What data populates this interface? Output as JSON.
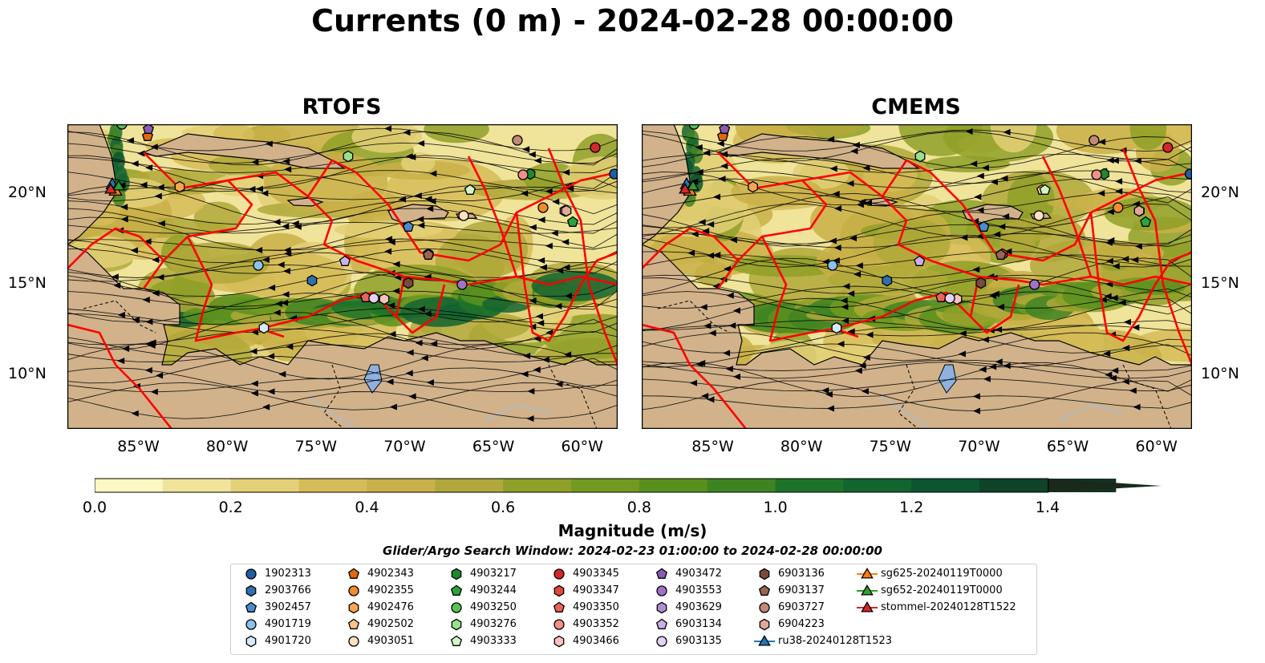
{
  "figure": {
    "suptitle": "Currents (0 m) - 2024-02-28 00:00:00",
    "panels": [
      {
        "title": "RTOFS"
      },
      {
        "title": "CMEMS"
      }
    ],
    "lat_labels": [
      "20°N",
      "15°N",
      "10°N"
    ],
    "lon_labels": [
      "85°W",
      "80°W",
      "75°W",
      "70°W",
      "65°W",
      "60°W"
    ]
  },
  "colorbar": {
    "label": "Magnitude (m/s)",
    "ticks": [
      "0.0",
      "0.2",
      "0.4",
      "0.6",
      "0.8",
      "1.0",
      "1.2",
      "1.4"
    ],
    "colors": [
      "#fdf7c2",
      "#f0e49a",
      "#e3d077",
      "#d6bc58",
      "#c9b048",
      "#b0a83a",
      "#8fa028",
      "#739a20",
      "#5a901e",
      "#3f8422",
      "#1f7328",
      "#146430",
      "#0d5430",
      "#0e4328",
      "#133322",
      "#192a1c"
    ]
  },
  "search_window": "Glider/Argo Search Window: 2024-02-23 01:00:00 to 2024-02-28 00:00:00",
  "legend": [
    {
      "label": "1902313",
      "marker": "circle",
      "color": "#1f5fa8"
    },
    {
      "label": "2903766",
      "marker": "hexagon",
      "color": "#2f6fb0"
    },
    {
      "label": "3902457",
      "marker": "pentagon",
      "color": "#4a8bd0"
    },
    {
      "label": "4901719",
      "marker": "circle",
      "color": "#8dc0ea"
    },
    {
      "label": "4901720",
      "marker": "hexagon",
      "color": "#d6e9f8"
    },
    {
      "label": "4902343",
      "marker": "pentagon",
      "color": "#e0690f"
    },
    {
      "label": "4902355",
      "marker": "circle",
      "color": "#f08c2a"
    },
    {
      "label": "4902476",
      "marker": "hexagon",
      "color": "#f5a650"
    },
    {
      "label": "4902502",
      "marker": "pentagon",
      "color": "#f8c48c"
    },
    {
      "label": "4903051",
      "marker": "circle",
      "color": "#fde0c0"
    },
    {
      "label": "4903217",
      "marker": "hexagon",
      "color": "#1e8a2c"
    },
    {
      "label": "4903244",
      "marker": "pentagon",
      "color": "#2ea33c"
    },
    {
      "label": "4903250",
      "marker": "circle",
      "color": "#5ac455"
    },
    {
      "label": "4903276",
      "marker": "hexagon",
      "color": "#98e08e"
    },
    {
      "label": "4903333",
      "marker": "pentagon",
      "color": "#d3f5c8"
    },
    {
      "label": "4903345",
      "marker": "circle",
      "color": "#d62728"
    },
    {
      "label": "4903347",
      "marker": "hexagon",
      "color": "#e0473d"
    },
    {
      "label": "4903350",
      "marker": "pentagon",
      "color": "#e86458"
    },
    {
      "label": "4903352",
      "marker": "circle",
      "color": "#f29088"
    },
    {
      "label": "4903466",
      "marker": "hexagon",
      "color": "#f8c2bc"
    },
    {
      "label": "4903472",
      "marker": "pentagon",
      "color": "#8a5bb5"
    },
    {
      "label": "4903553",
      "marker": "circle",
      "color": "#9f74c8"
    },
    {
      "label": "4903629",
      "marker": "hexagon",
      "color": "#b08ed6"
    },
    {
      "label": "6903134",
      "marker": "pentagon",
      "color": "#cbb0e6"
    },
    {
      "label": "6903135",
      "marker": "circle",
      "color": "#e2d2f4"
    },
    {
      "label": "6903136",
      "marker": "hexagon",
      "color": "#7a4a3a"
    },
    {
      "label": "6903137",
      "marker": "pentagon",
      "color": "#9a6652"
    },
    {
      "label": "6903727",
      "marker": "circle",
      "color": "#c08a76"
    },
    {
      "label": "6904223",
      "marker": "hexagon",
      "color": "#e0a896"
    },
    {
      "label": "ru38-20240128T1523",
      "marker": "triangle-line",
      "color": "#1f77b4"
    },
    {
      "label": "sg625-20240119T0000",
      "marker": "triangle-line",
      "color": "#ff7f0e"
    },
    {
      "label": "sg652-20240119T0000",
      "marker": "triangle-line",
      "color": "#2ca02c"
    },
    {
      "label": "stommel-20240128T1522",
      "marker": "triangle-line",
      "color": "#d62728"
    }
  ],
  "map_colors": {
    "land": "#d1b28b",
    "lake": "#8fb1e0",
    "track": "#ff0000",
    "streamline": "#000000"
  }
}
